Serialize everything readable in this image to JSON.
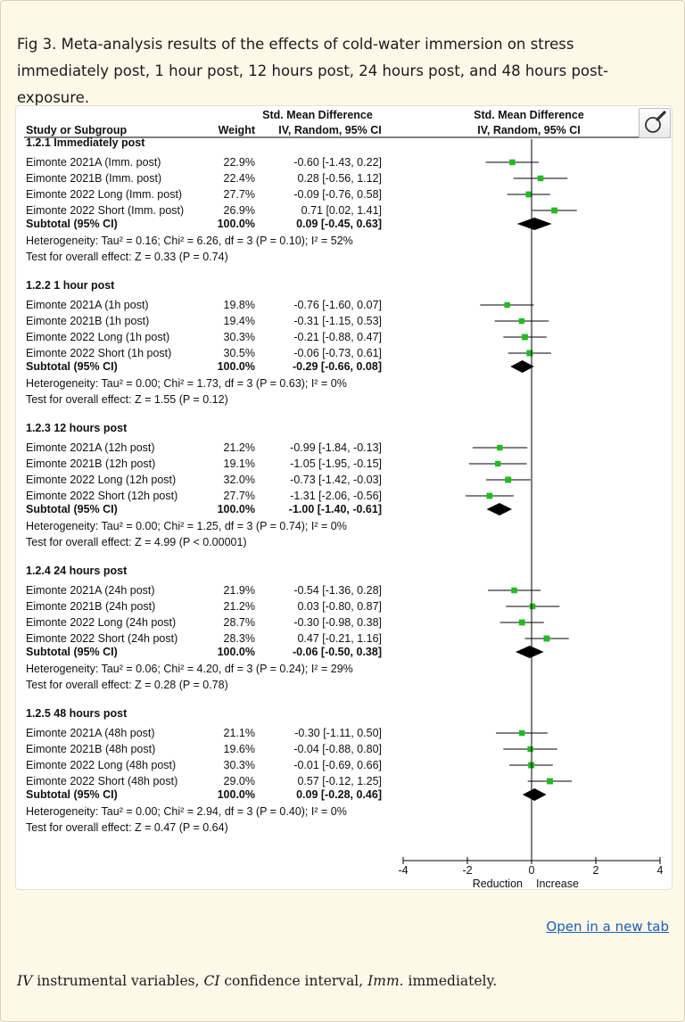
{
  "caption": "Fig 3. Meta-analysis results of the effects of cold-water immersion on stress immediately post, 1 hour post, 12 hours post, 24 hours post, and 48 hours post-exposure.",
  "open_link": "Open in a new tab",
  "footnote": [
    {
      "abbr": "IV",
      "text": " instrumental variables, "
    },
    {
      "abbr": "CI",
      "text": " confidence interval, "
    },
    {
      "abbr": "Imm.",
      "text": " immediately."
    }
  ],
  "colors": {
    "marker": "#22bb22",
    "diamond": "#000000",
    "line": "#000000"
  },
  "chart_data": {
    "type": "forest",
    "header": {
      "study_col": "Study or Subgroup",
      "weight_col": "Weight",
      "effect_col_top": "Std. Mean Difference",
      "effect_col_bottom": "IV, Random, 95% CI",
      "plot_col_top": "Std. Mean Difference",
      "plot_col_bottom": "IV, Random, 95% CI"
    },
    "xlim": [
      -4,
      4
    ],
    "xticks": [
      "-4",
      "-2",
      "0",
      "2",
      "4"
    ],
    "xticks_values": [
      -4,
      -2,
      0,
      2,
      4
    ],
    "xlabel_left": "Reduction",
    "xlabel_right": "Increase",
    "subgroups": [
      {
        "title": "1.2.1 Immediately post",
        "studies": [
          {
            "name": "Eimonte 2021A (Imm. post)",
            "weight": "22.9%",
            "ci_text": "-0.60 [-1.43, 0.22]",
            "est": -0.6,
            "lo": -1.43,
            "hi": 0.22
          },
          {
            "name": "Eimonte 2021B (Imm. post)",
            "weight": "22.4%",
            "ci_text": "0.28 [-0.56, 1.12]",
            "est": 0.28,
            "lo": -0.56,
            "hi": 1.12
          },
          {
            "name": "Eimonte 2022 Long (Imm. post)",
            "weight": "27.7%",
            "ci_text": "-0.09 [-0.76, 0.58]",
            "est": -0.09,
            "lo": -0.76,
            "hi": 0.58
          },
          {
            "name": "Eimonte 2022 Short (Imm. post)",
            "weight": "26.9%",
            "ci_text": "0.71 [0.02, 1.41]",
            "est": 0.71,
            "lo": 0.02,
            "hi": 1.41
          }
        ],
        "subtotal": {
          "label": "Subtotal (95% CI)",
          "weight": "100.0%",
          "ci_text": "0.09 [-0.45, 0.63]",
          "est": 0.09,
          "lo": -0.45,
          "hi": 0.63
        },
        "heterogeneity": "Heterogeneity: Tau² = 0.16; Chi² = 6.26, df = 3 (P = 0.10); I² = 52%",
        "overall": "Test for overall effect: Z = 0.33 (P = 0.74)"
      },
      {
        "title": "1.2.2 1 hour post",
        "studies": [
          {
            "name": "Eimonte 2021A (1h post)",
            "weight": "19.8%",
            "ci_text": "-0.76 [-1.60, 0.07]",
            "est": -0.76,
            "lo": -1.6,
            "hi": 0.07
          },
          {
            "name": "Eimonte 2021B (1h post)",
            "weight": "19.4%",
            "ci_text": "-0.31 [-1.15, 0.53]",
            "est": -0.31,
            "lo": -1.15,
            "hi": 0.53
          },
          {
            "name": "Eimonte 2022 Long (1h post)",
            "weight": "30.3%",
            "ci_text": "-0.21 [-0.88, 0.47]",
            "est": -0.21,
            "lo": -0.88,
            "hi": 0.47
          },
          {
            "name": "Eimonte 2022 Short (1h post)",
            "weight": "30.5%",
            "ci_text": "-0.06 [-0.73, 0.61]",
            "est": -0.06,
            "lo": -0.73,
            "hi": 0.61
          }
        ],
        "subtotal": {
          "label": "Subtotal (95% CI)",
          "weight": "100.0%",
          "ci_text": "-0.29 [-0.66, 0.08]",
          "est": -0.29,
          "lo": -0.66,
          "hi": 0.08
        },
        "heterogeneity": "Heterogeneity: Tau² = 0.00; Chi² = 1.73, df = 3 (P = 0.63); I² = 0%",
        "overall": "Test for overall effect: Z = 1.55 (P = 0.12)"
      },
      {
        "title": "1.2.3 12 hours post",
        "studies": [
          {
            "name": "Eimonte 2021A (12h post)",
            "weight": "21.2%",
            "ci_text": "-0.99 [-1.84, -0.13]",
            "est": -0.99,
            "lo": -1.84,
            "hi": -0.13
          },
          {
            "name": "Eimonte 2021B (12h post)",
            "weight": "19.1%",
            "ci_text": "-1.05 [-1.95, -0.15]",
            "est": -1.05,
            "lo": -1.95,
            "hi": -0.15
          },
          {
            "name": "Eimonte 2022 Long (12h post)",
            "weight": "32.0%",
            "ci_text": "-0.73 [-1.42, -0.03]",
            "est": -0.73,
            "lo": -1.42,
            "hi": -0.03
          },
          {
            "name": "Eimonte 2022 Short (12h post)",
            "weight": "27.7%",
            "ci_text": "-1.31 [-2.06, -0.56]",
            "est": -1.31,
            "lo": -2.06,
            "hi": -0.56
          }
        ],
        "subtotal": {
          "label": "Subtotal (95% CI)",
          "weight": "100.0%",
          "ci_text": "-1.00 [-1.40, -0.61]",
          "est": -1.0,
          "lo": -1.4,
          "hi": -0.61
        },
        "heterogeneity": "Heterogeneity: Tau² = 0.00; Chi² = 1.25, df = 3 (P = 0.74); I² = 0%",
        "overall": "Test for overall effect: Z = 4.99 (P < 0.00001)"
      },
      {
        "title": "1.2.4 24 hours post",
        "studies": [
          {
            "name": "Eimonte 2021A (24h post)",
            "weight": "21.9%",
            "ci_text": "-0.54 [-1.36, 0.28]",
            "est": -0.54,
            "lo": -1.36,
            "hi": 0.28
          },
          {
            "name": "Eimonte 2021B (24h post)",
            "weight": "21.2%",
            "ci_text": "0.03 [-0.80, 0.87]",
            "est": 0.03,
            "lo": -0.8,
            "hi": 0.87
          },
          {
            "name": "Eimonte 2022 Long (24h post)",
            "weight": "28.7%",
            "ci_text": "-0.30 [-0.98, 0.38]",
            "est": -0.3,
            "lo": -0.98,
            "hi": 0.38
          },
          {
            "name": "Eimonte 2022 Short (24h post)",
            "weight": "28.3%",
            "ci_text": "0.47 [-0.21, 1.16]",
            "est": 0.47,
            "lo": -0.21,
            "hi": 1.16
          }
        ],
        "subtotal": {
          "label": "Subtotal (95% CI)",
          "weight": "100.0%",
          "ci_text": "-0.06 [-0.50, 0.38]",
          "est": -0.06,
          "lo": -0.5,
          "hi": 0.38
        },
        "heterogeneity": "Heterogeneity: Tau² = 0.06; Chi² = 4.20, df = 3 (P = 0.24); I² = 29%",
        "overall": "Test for overall effect: Z = 0.28 (P = 0.78)"
      },
      {
        "title": "1.2.5 48 hours post",
        "studies": [
          {
            "name": "Eimonte 2021A (48h post)",
            "weight": "21.1%",
            "ci_text": "-0.30 [-1.11, 0.50]",
            "est": -0.3,
            "lo": -1.11,
            "hi": 0.5
          },
          {
            "name": "Eimonte 2021B (48h post)",
            "weight": "19.6%",
            "ci_text": "-0.04 [-0.88, 0.80]",
            "est": -0.04,
            "lo": -0.88,
            "hi": 0.8
          },
          {
            "name": "Eimonte 2022 Long (48h post)",
            "weight": "30.3%",
            "ci_text": "-0.01 [-0.69, 0.66]",
            "est": -0.01,
            "lo": -0.69,
            "hi": 0.66
          },
          {
            "name": "Eimonte 2022 Short (48h post)",
            "weight": "29.0%",
            "ci_text": "0.57 [-0.12, 1.25]",
            "est": 0.57,
            "lo": -0.12,
            "hi": 1.25
          }
        ],
        "subtotal": {
          "label": "Subtotal (95% CI)",
          "weight": "100.0%",
          "ci_text": "0.09 [-0.28, 0.46]",
          "est": 0.09,
          "lo": -0.28,
          "hi": 0.46
        },
        "heterogeneity": "Heterogeneity: Tau² = 0.00; Chi² = 2.94, df = 3 (P = 0.40); I² = 0%",
        "overall": "Test for overall effect: Z = 0.47 (P = 0.64)"
      }
    ]
  }
}
